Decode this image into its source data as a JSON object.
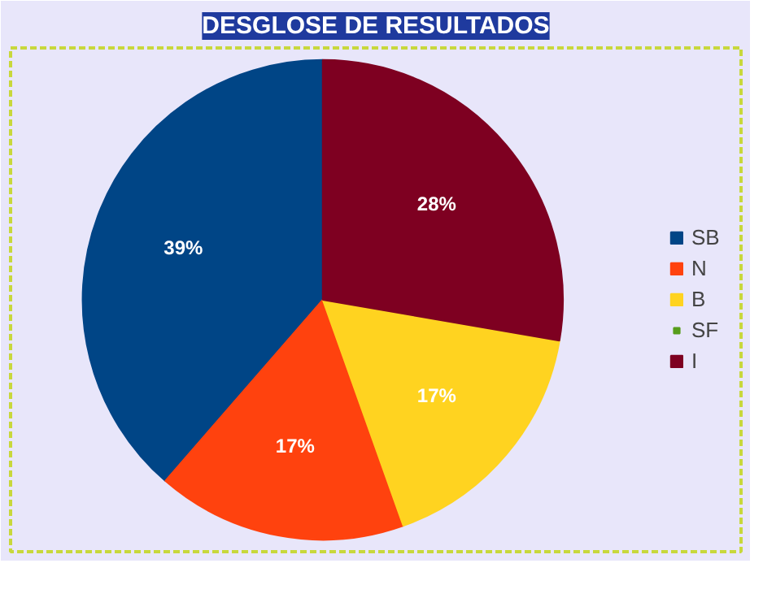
{
  "chart_data": {
    "type": "pie",
    "title": "DESGLOSE DE RESULTADOS",
    "categories": [
      "SB",
      "N",
      "B",
      "SF",
      "I"
    ],
    "values": [
      39,
      17,
      17,
      0,
      28
    ],
    "colors": [
      "#004586",
      "#ff420e",
      "#ffd320",
      "#579d1c",
      "#7e0021"
    ],
    "value_labels": [
      "39%",
      "17%",
      "17%",
      null,
      "28%"
    ],
    "legend": "right"
  }
}
